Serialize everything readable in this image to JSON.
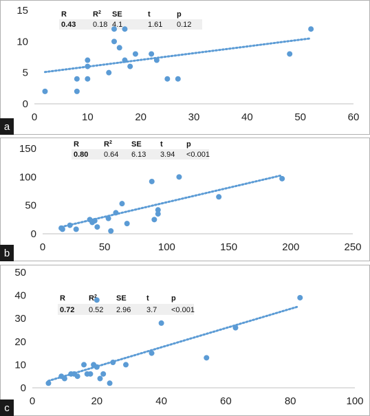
{
  "chart_data": [
    {
      "panel_label": "a",
      "type": "scatter",
      "x": [
        2,
        8,
        8,
        10,
        10,
        10,
        14,
        15,
        15,
        16,
        17,
        17,
        18,
        19,
        22,
        23,
        25,
        27,
        48,
        52
      ],
      "y": [
        2,
        2,
        4,
        4,
        6,
        7,
        5,
        10,
        12,
        9,
        12,
        7,
        6,
        8,
        8,
        7,
        4,
        4,
        8,
        12
      ],
      "trend": {
        "type": "linear",
        "x": [
          2,
          52
        ],
        "y": [
          5.1,
          10.5
        ]
      },
      "xlim": [
        0,
        60
      ],
      "ylim": [
        0,
        15
      ],
      "xticks": [
        "0",
        "10",
        "20",
        "30",
        "40",
        "50",
        "60"
      ],
      "yticks": [
        "0",
        "5",
        "10",
        "15"
      ],
      "stats_headers": [
        "R",
        "R",
        "SE",
        "t",
        "p"
      ],
      "stats_superscripts": [
        "",
        "2",
        "",
        "",
        ""
      ],
      "stats_values": [
        "0.43",
        "0.18",
        "4.1",
        "1.61",
        "0.12"
      ]
    },
    {
      "panel_label": "b",
      "type": "scatter",
      "x": [
        15,
        16,
        22,
        27,
        38,
        40,
        42,
        44,
        53,
        55,
        59,
        64,
        68,
        88,
        90,
        93,
        93,
        110,
        142,
        193
      ],
      "y": [
        10,
        8,
        15,
        8,
        25,
        20,
        23,
        12,
        27,
        5,
        37,
        53,
        18,
        92,
        25,
        42,
        35,
        100,
        65,
        97
      ],
      "trend": {
        "type": "linear",
        "x": [
          15,
          193
        ],
        "y": [
          12,
          103
        ]
      },
      "xlim": [
        0,
        250
      ],
      "ylim": [
        0,
        150
      ],
      "xticks": [
        "0",
        "50",
        "100",
        "150",
        "200",
        "250"
      ],
      "yticks": [
        "0",
        "50",
        "100",
        "150"
      ],
      "stats_headers": [
        "R",
        "R",
        "SE",
        "t",
        "p"
      ],
      "stats_superscripts": [
        "",
        "2",
        "",
        "",
        ""
      ],
      "stats_values": [
        "0.80",
        "0.64",
        "6.13",
        "3.94",
        "<0.001"
      ]
    },
    {
      "panel_label": "c",
      "type": "scatter",
      "x": [
        5,
        9,
        10,
        12,
        13,
        14,
        16,
        17,
        18,
        19,
        20,
        20,
        21,
        22,
        24,
        25,
        29,
        37,
        40,
        54,
        63,
        83
      ],
      "y": [
        2,
        5,
        4,
        6,
        6,
        5,
        10,
        6,
        6,
        10,
        9,
        38,
        4,
        6,
        2,
        11,
        10,
        15,
        28,
        13,
        26,
        39
      ],
      "trend": {
        "type": "linear",
        "x": [
          5,
          82
        ],
        "y": [
          3,
          35
        ]
      },
      "xlim": [
        0,
        100
      ],
      "ylim": [
        0,
        50
      ],
      "xticks": [
        "0",
        "20",
        "40",
        "60",
        "80",
        "100"
      ],
      "yticks": [
        "0",
        "10",
        "20",
        "30",
        "40",
        "50"
      ],
      "stats_headers": [
        "R",
        "R",
        "SE",
        "t",
        "p"
      ],
      "stats_superscripts": [
        "",
        "2",
        "",
        "",
        ""
      ],
      "stats_values": [
        "0.72",
        "0.52",
        "2.96",
        "3.7",
        "<0.001"
      ]
    }
  ],
  "colors": {
    "marker": "#5b9bd5",
    "trendline": "#5b9bd5",
    "stats_box": "#efefef",
    "label_box": "#1a1a1a",
    "axis": "#bfbfbf",
    "border": "#b0b0b0"
  }
}
